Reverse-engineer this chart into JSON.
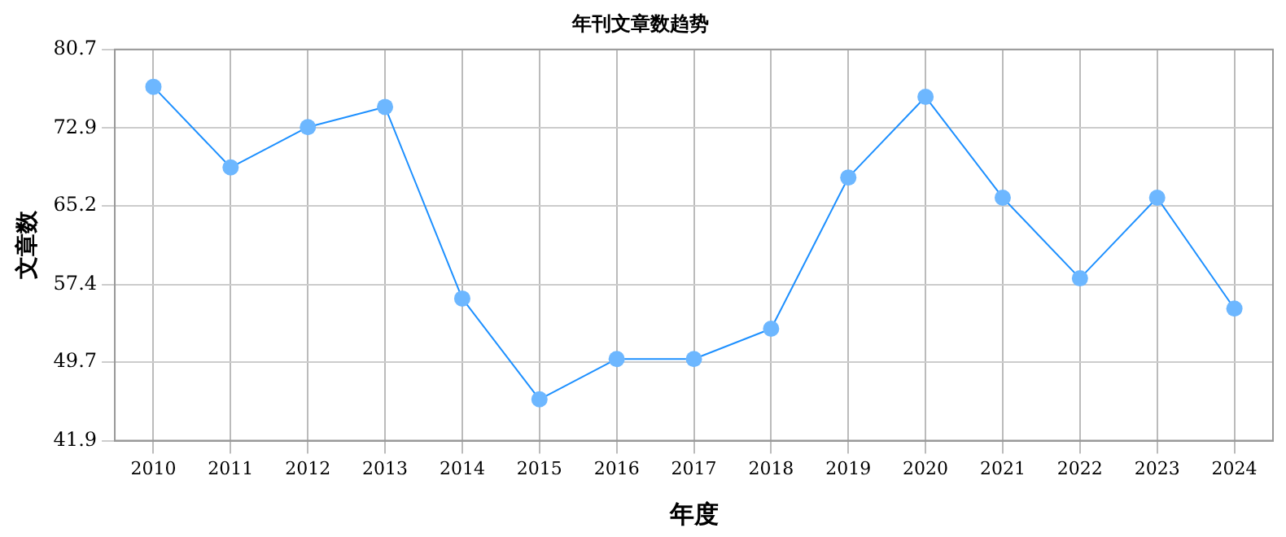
{
  "chart_data": {
    "type": "line",
    "title": "年刊文章数趋势",
    "xlabel": "年度",
    "ylabel": "文章数",
    "categories": [
      "2010",
      "2011",
      "2012",
      "2013",
      "2014",
      "2015",
      "2016",
      "2017",
      "2018",
      "2019",
      "2020",
      "2021",
      "2022",
      "2023",
      "2024"
    ],
    "series": [
      {
        "color": "#1e90ff",
        "values": [
          77,
          69,
          73,
          75,
          56,
          46,
          50,
          50,
          53,
          68,
          76,
          66,
          58,
          66,
          55
        ]
      }
    ],
    "ylim": [
      41.9,
      80.7
    ],
    "yticks": [
      41.9,
      49.7,
      57.4,
      65.2,
      72.9,
      80.7
    ],
    "grid": true,
    "legend": false,
    "marker": "circle",
    "line_style": "solid"
  }
}
